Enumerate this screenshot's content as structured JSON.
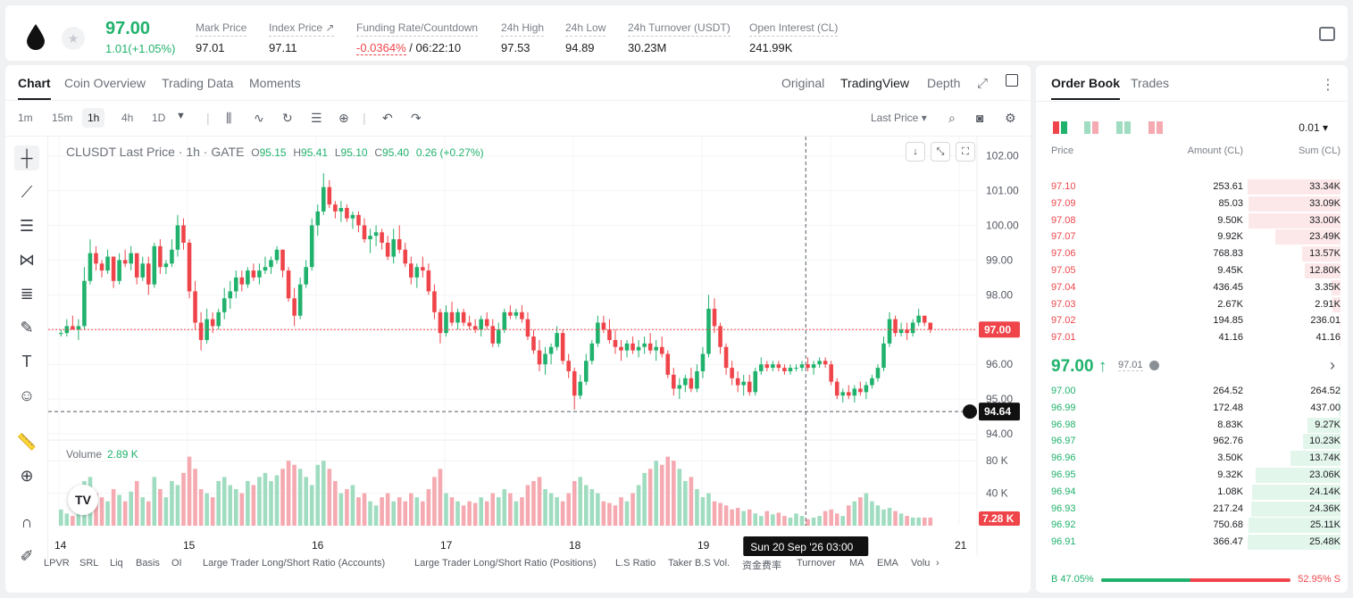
{
  "header": {
    "last_price": "97.00",
    "change": "1.01(+1.05%)",
    "stats": [
      {
        "label": "Mark Price",
        "value": "97.01"
      },
      {
        "label": "Index Price ↗",
        "value": "97.11"
      },
      {
        "label": "Funding Rate/Countdown",
        "value_neg": "-0.0364%",
        "value": "/ 06:22:10"
      },
      {
        "label": "24h High",
        "value": "97.53"
      },
      {
        "label": "24h Low",
        "value": "94.89"
      },
      {
        "label": "24h Turnover (USDT)",
        "value": "30.23M"
      },
      {
        "label": "Open Interest (CL)",
        "value": "241.99K"
      }
    ]
  },
  "chart_tabs": [
    "Chart",
    "Coin Overview",
    "Trading Data",
    "Moments"
  ],
  "view_tabs": [
    "Original",
    "TradingView",
    "Depth"
  ],
  "timeframes": [
    "1m",
    "15m",
    "1h",
    "4h",
    "1D"
  ],
  "last_price_select": "Last Price",
  "legend": {
    "symbol": "CLUSDT Last Price · 1h · GATE",
    "o_label": "O",
    "o": "95.15",
    "h_label": "H",
    "h": "95.41",
    "l_label": "L",
    "l": "95.10",
    "c_label": "C",
    "c": "95.40",
    "change": "0.26 (+0.27%)"
  },
  "volume_legend": {
    "label": "Volume",
    "value": "2.89 K"
  },
  "crosshair": {
    "price": "94.64",
    "time": "Sun 20 Sep '26   03:00"
  },
  "current_price_tag": "97.00",
  "current_volume_tag": "7.28 K",
  "indicators": [
    "LPVR",
    "SRL",
    "Liq",
    "Basis",
    "OI",
    "Large Trader Long/Short Ratio (Accounts)",
    "Large Trader Long/Short Ratio (Positions)",
    "L.S Ratio",
    "Taker B.S Vol.",
    "资金费率",
    "Turnover",
    "MA",
    "EMA",
    "Volu"
  ],
  "chart_data": {
    "type": "candlestick",
    "title": "CLUSDT Last Price · 1h · GATE",
    "price_axis_ticks": [
      "102.00",
      "101.00",
      "100.00",
      "99.00",
      "98.00",
      "97.00",
      "96.00",
      "95.00",
      "94.00"
    ],
    "volume_axis_ticks": [
      "80 K",
      "40 K"
    ],
    "x_ticks": [
      "14",
      "15",
      "16",
      "17",
      "18",
      "19",
      "20",
      "21"
    ],
    "ylim": [
      93.95,
      102.35
    ],
    "volume_ylim": [
      0,
      100000
    ],
    "grid": true,
    "candles_ohlc": [
      [
        96.9,
        97.0,
        96.8,
        96.9
      ],
      [
        96.9,
        97.3,
        96.8,
        97.1
      ],
      [
        97.1,
        97.4,
        97.0,
        97.0
      ],
      [
        97.0,
        97.3,
        96.7,
        97.1
      ],
      [
        97.1,
        98.8,
        97.0,
        98.4
      ],
      [
        98.4,
        99.6,
        98.3,
        99.2
      ],
      [
        99.2,
        99.4,
        98.7,
        98.9
      ],
      [
        98.9,
        99.0,
        98.5,
        98.7
      ],
      [
        98.7,
        99.3,
        98.6,
        99.1
      ],
      [
        99.1,
        99.0,
        98.2,
        98.4
      ],
      [
        98.4,
        99.2,
        98.3,
        99.0
      ],
      [
        99.0,
        99.3,
        98.8,
        98.9
      ],
      [
        98.9,
        99.4,
        98.7,
        99.2
      ],
      [
        99.2,
        99.0,
        98.3,
        98.5
      ],
      [
        98.5,
        99.1,
        98.4,
        98.9
      ],
      [
        98.9,
        99.1,
        98.0,
        98.3
      ],
      [
        98.3,
        99.5,
        98.2,
        99.4
      ],
      [
        99.4,
        99.6,
        98.6,
        98.8
      ],
      [
        98.8,
        99.0,
        98.6,
        98.9
      ],
      [
        98.9,
        99.6,
        98.8,
        99.3
      ],
      [
        99.3,
        100.3,
        99.1,
        100.0
      ],
      [
        100.0,
        100.2,
        99.3,
        99.5
      ],
      [
        99.5,
        99.6,
        97.9,
        98.1
      ],
      [
        98.1,
        98.4,
        97.0,
        97.2
      ],
      [
        97.2,
        97.5,
        96.4,
        96.7
      ],
      [
        96.7,
        97.6,
        96.6,
        97.3
      ],
      [
        97.3,
        97.5,
        96.9,
        97.1
      ],
      [
        97.1,
        97.6,
        97.0,
        97.5
      ],
      [
        97.5,
        98.2,
        97.3,
        97.9
      ],
      [
        97.9,
        98.4,
        97.6,
        98.1
      ],
      [
        98.1,
        98.7,
        97.9,
        98.5
      ],
      [
        98.5,
        98.7,
        98.1,
        98.3
      ],
      [
        98.3,
        98.8,
        98.2,
        98.7
      ],
      [
        98.7,
        98.9,
        98.4,
        98.5
      ],
      [
        98.5,
        98.9,
        98.3,
        98.7
      ],
      [
        98.7,
        99.1,
        98.6,
        98.8
      ],
      [
        98.8,
        99.1,
        98.6,
        99.0
      ],
      [
        99.0,
        99.4,
        98.9,
        99.3
      ],
      [
        99.3,
        99.3,
        98.5,
        98.7
      ],
      [
        98.7,
        98.8,
        97.8,
        97.9
      ],
      [
        97.9,
        98.2,
        97.1,
        97.4
      ],
      [
        97.4,
        98.5,
        97.3,
        98.3
      ],
      [
        98.3,
        99.0,
        98.2,
        98.8
      ],
      [
        98.8,
        100.2,
        98.7,
        100.0
      ],
      [
        100.0,
        100.6,
        99.7,
        100.4
      ],
      [
        100.4,
        101.5,
        100.3,
        101.1
      ],
      [
        101.1,
        101.3,
        100.5,
        100.6
      ],
      [
        100.6,
        100.7,
        100.2,
        100.4
      ],
      [
        100.4,
        100.7,
        100.1,
        100.5
      ],
      [
        100.5,
        100.6,
        100.1,
        100.2
      ],
      [
        100.2,
        100.4,
        99.9,
        100.3
      ],
      [
        100.3,
        100.4,
        99.8,
        100.0
      ],
      [
        100.0,
        100.2,
        99.5,
        99.6
      ],
      [
        99.6,
        99.9,
        99.2,
        99.7
      ],
      [
        99.7,
        100.0,
        99.4,
        99.8
      ],
      [
        99.8,
        99.9,
        99.3,
        99.5
      ],
      [
        99.5,
        99.7,
        99.0,
        99.1
      ],
      [
        99.1,
        99.9,
        98.9,
        99.6
      ],
      [
        99.6,
        100.0,
        99.2,
        99.3
      ],
      [
        99.3,
        99.5,
        98.8,
        98.9
      ],
      [
        98.9,
        99.1,
        98.3,
        98.5
      ],
      [
        98.5,
        98.9,
        98.2,
        98.8
      ],
      [
        98.8,
        99.1,
        98.5,
        98.7
      ],
      [
        98.7,
        98.9,
        98.0,
        98.1
      ],
      [
        98.1,
        98.3,
        97.3,
        97.5
      ],
      [
        97.5,
        97.6,
        96.6,
        96.9
      ],
      [
        96.9,
        97.7,
        96.8,
        97.5
      ],
      [
        97.5,
        97.8,
        97.1,
        97.2
      ],
      [
        97.2,
        97.6,
        97.0,
        97.5
      ],
      [
        97.5,
        97.6,
        97.1,
        97.2
      ],
      [
        97.2,
        97.4,
        97.0,
        97.1
      ],
      [
        97.1,
        97.3,
        96.9,
        97.0
      ],
      [
        97.0,
        97.4,
        96.8,
        97.3
      ],
      [
        97.3,
        97.5,
        97.0,
        97.1
      ],
      [
        97.1,
        97.3,
        96.5,
        96.6
      ],
      [
        96.6,
        97.2,
        96.5,
        97.0
      ],
      [
        97.0,
        97.6,
        96.9,
        97.5
      ],
      [
        97.5,
        97.7,
        97.3,
        97.4
      ],
      [
        97.4,
        97.6,
        97.3,
        97.5
      ],
      [
        97.5,
        97.7,
        97.2,
        97.3
      ],
      [
        97.3,
        97.5,
        96.7,
        96.8
      ],
      [
        96.8,
        97.0,
        96.3,
        96.4
      ],
      [
        96.4,
        96.7,
        95.8,
        96.0
      ],
      [
        96.0,
        96.5,
        95.7,
        96.3
      ],
      [
        96.3,
        96.6,
        96.0,
        96.5
      ],
      [
        96.5,
        97.1,
        96.4,
        96.9
      ],
      [
        96.9,
        97.0,
        96.0,
        96.1
      ],
      [
        96.1,
        96.3,
        95.6,
        95.8
      ],
      [
        95.8,
        95.9,
        94.7,
        95.1
      ],
      [
        95.1,
        95.7,
        95.0,
        95.5
      ],
      [
        95.5,
        96.3,
        95.4,
        96.1
      ],
      [
        96.1,
        96.7,
        96.0,
        96.6
      ],
      [
        96.6,
        97.4,
        96.5,
        97.2
      ],
      [
        97.2,
        97.4,
        96.9,
        97.0
      ],
      [
        97.0,
        97.3,
        96.6,
        96.7
      ],
      [
        96.7,
        97.0,
        96.3,
        96.5
      ],
      [
        96.5,
        96.7,
        96.1,
        96.4
      ],
      [
        96.4,
        96.7,
        96.2,
        96.6
      ],
      [
        96.6,
        96.8,
        96.3,
        96.4
      ],
      [
        96.4,
        96.7,
        96.2,
        96.5
      ],
      [
        96.5,
        96.8,
        96.3,
        96.6
      ],
      [
        96.6,
        96.9,
        96.3,
        96.4
      ],
      [
        96.4,
        96.7,
        96.1,
        96.5
      ],
      [
        96.5,
        96.8,
        96.2,
        96.3
      ],
      [
        96.3,
        96.4,
        95.6,
        95.7
      ],
      [
        95.7,
        95.9,
        95.1,
        95.3
      ],
      [
        95.3,
        95.6,
        95.0,
        95.4
      ],
      [
        95.4,
        95.7,
        95.2,
        95.6
      ],
      [
        95.6,
        95.9,
        95.2,
        95.3
      ],
      [
        95.3,
        96.0,
        95.2,
        95.8
      ],
      [
        95.8,
        96.5,
        95.6,
        96.3
      ],
      [
        96.3,
        98.0,
        96.2,
        97.6
      ],
      [
        97.6,
        97.9,
        96.9,
        97.1
      ],
      [
        97.1,
        97.2,
        96.3,
        96.5
      ],
      [
        96.5,
        96.6,
        95.7,
        95.9
      ],
      [
        95.9,
        96.1,
        95.4,
        95.6
      ],
      [
        95.6,
        95.8,
        95.2,
        95.4
      ],
      [
        95.4,
        95.7,
        95.1,
        95.5
      ],
      [
        95.5,
        95.7,
        95.1,
        95.2
      ],
      [
        95.2,
        95.9,
        95.1,
        95.8
      ],
      [
        95.8,
        96.2,
        95.7,
        96.0
      ],
      [
        96.0,
        96.1,
        95.8,
        95.9
      ],
      [
        95.9,
        96.1,
        95.8,
        96.0
      ],
      [
        96.0,
        96.1,
        95.8,
        95.9
      ],
      [
        95.9,
        96.0,
        95.7,
        95.8
      ],
      [
        95.8,
        96.0,
        95.7,
        95.9
      ],
      [
        95.9,
        96.0,
        95.8,
        95.9
      ],
      [
        95.9,
        96.1,
        95.8,
        96.0
      ],
      [
        96.0,
        96.2,
        95.8,
        95.9
      ],
      [
        95.9,
        96.1,
        95.7,
        96.0
      ],
      [
        96.0,
        96.2,
        95.9,
        96.1
      ],
      [
        96.1,
        96.2,
        95.9,
        96.0
      ],
      [
        96.0,
        96.1,
        95.4,
        95.5
      ],
      [
        95.5,
        95.6,
        95.0,
        95.1
      ],
      [
        95.1,
        95.3,
        94.9,
        95.2
      ],
      [
        95.2,
        95.4,
        95.0,
        95.1
      ],
      [
        95.1,
        95.4,
        94.9,
        95.3
      ],
      [
        95.3,
        95.5,
        95.1,
        95.2
      ],
      [
        95.2,
        95.5,
        95.0,
        95.4
      ],
      [
        95.4,
        95.7,
        95.3,
        95.6
      ],
      [
        95.6,
        96.0,
        95.5,
        95.9
      ],
      [
        95.9,
        96.8,
        95.8,
        96.6
      ],
      [
        96.6,
        97.5,
        96.5,
        97.3
      ],
      [
        97.3,
        97.4,
        96.8,
        96.9
      ],
      [
        96.9,
        97.2,
        96.8,
        97.0
      ],
      [
        97.0,
        97.2,
        96.7,
        96.9
      ],
      [
        96.9,
        97.3,
        96.8,
        97.2
      ],
      [
        97.2,
        97.6,
        97.1,
        97.4
      ],
      [
        97.4,
        97.4,
        97.1,
        97.2
      ],
      [
        97.2,
        97.2,
        96.9,
        97.0
      ]
    ],
    "volume_k": [
      20,
      15,
      12,
      45,
      55,
      60,
      40,
      35,
      30,
      45,
      38,
      30,
      42,
      55,
      35,
      30,
      60,
      45,
      35,
      55,
      50,
      65,
      85,
      70,
      45,
      40,
      35,
      55,
      60,
      50,
      45,
      40,
      55,
      50,
      60,
      65,
      55,
      62,
      70,
      80,
      75,
      70,
      60,
      50,
      75,
      80,
      70,
      55,
      40,
      45,
      50,
      35,
      40,
      30,
      25,
      35,
      40,
      30,
      35,
      30,
      40,
      35,
      30,
      45,
      60,
      70,
      40,
      35,
      30,
      25,
      30,
      28,
      35,
      30,
      40,
      35,
      45,
      40,
      30,
      35,
      50,
      55,
      60,
      45,
      40,
      35,
      30,
      40,
      55,
      60,
      50,
      45,
      40,
      30,
      28,
      25,
      35,
      30,
      40,
      50,
      65,
      70,
      80,
      75,
      85,
      80,
      70,
      55,
      60,
      45,
      35,
      40,
      30,
      28,
      25,
      20,
      22,
      18,
      20,
      15,
      12,
      18,
      14,
      16,
      12,
      10,
      15,
      12,
      8,
      10,
      12,
      18,
      20,
      15,
      12,
      25,
      30,
      35,
      40,
      30,
      25,
      20,
      22,
      18,
      15,
      12,
      10
    ]
  },
  "order_book": {
    "tabs": [
      "Order Book",
      "Trades"
    ],
    "precision": "0.01",
    "columns": [
      "Price",
      "Amount (CL)",
      "Sum (CL)"
    ],
    "asks": [
      {
        "price": "97.10",
        "amount": "253.61",
        "sum": "33.34K",
        "depth": 1.0
      },
      {
        "price": "97.09",
        "amount": "85.03",
        "sum": "33.09K",
        "depth": 0.99
      },
      {
        "price": "97.08",
        "amount": "9.50K",
        "sum": "33.00K",
        "depth": 0.99
      },
      {
        "price": "97.07",
        "amount": "9.92K",
        "sum": "23.49K",
        "depth": 0.7
      },
      {
        "price": "97.06",
        "amount": "768.83",
        "sum": "13.57K",
        "depth": 0.41
      },
      {
        "price": "97.05",
        "amount": "9.45K",
        "sum": "12.80K",
        "depth": 0.38
      },
      {
        "price": "97.04",
        "amount": "436.45",
        "sum": "3.35K",
        "depth": 0.1
      },
      {
        "price": "97.03",
        "amount": "2.67K",
        "sum": "2.91K",
        "depth": 0.09
      },
      {
        "price": "97.02",
        "amount": "194.85",
        "sum": "236.01",
        "depth": 0.01
      },
      {
        "price": "97.01",
        "amount": "41.16",
        "sum": "41.16",
        "depth": 0.0
      }
    ],
    "mid_price": "97.00 ↑",
    "mark_price": "97.01",
    "bids": [
      {
        "price": "97.00",
        "amount": "264.52",
        "sum": "264.52",
        "depth": 0.01
      },
      {
        "price": "96.99",
        "amount": "172.48",
        "sum": "437.00",
        "depth": 0.02
      },
      {
        "price": "96.98",
        "amount": "8.83K",
        "sum": "9.27K",
        "depth": 0.36
      },
      {
        "price": "96.97",
        "amount": "962.76",
        "sum": "10.23K",
        "depth": 0.4
      },
      {
        "price": "96.96",
        "amount": "3.50K",
        "sum": "13.74K",
        "depth": 0.54
      },
      {
        "price": "96.95",
        "amount": "9.32K",
        "sum": "23.06K",
        "depth": 0.91
      },
      {
        "price": "96.94",
        "amount": "1.08K",
        "sum": "24.14K",
        "depth": 0.95
      },
      {
        "price": "96.93",
        "amount": "217.24",
        "sum": "24.36K",
        "depth": 0.96
      },
      {
        "price": "96.92",
        "amount": "750.68",
        "sum": "25.11K",
        "depth": 0.99
      },
      {
        "price": "96.91",
        "amount": "366.47",
        "sum": "25.48K",
        "depth": 1.0
      }
    ],
    "buy_ratio": "B 47.05%",
    "sell_ratio": "52.95% S",
    "buy_fraction": 0.4705
  },
  "colors": {
    "up": "#20b26c",
    "down": "#ef454a",
    "up_vol": "#9fdcc0",
    "down_vol": "#f5a9b0"
  }
}
